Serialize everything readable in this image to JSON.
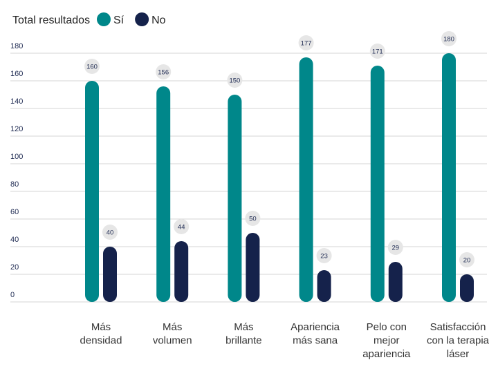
{
  "chart_data": {
    "type": "bar",
    "legend_title": "Total resultados",
    "legend_position": "top-left",
    "categories": [
      [
        "Más",
        "densidad"
      ],
      [
        "Más",
        "volumen"
      ],
      [
        "Más",
        "brillante"
      ],
      [
        "Apariencia",
        "más sana"
      ],
      [
        "Pelo con",
        "mejor",
        "apariencia"
      ],
      [
        "Satisfacción",
        "con la terapia",
        "láser"
      ]
    ],
    "series": [
      {
        "name": "Sí",
        "color": "#00878a",
        "values": [
          160,
          156,
          150,
          177,
          171,
          180
        ]
      },
      {
        "name": "No",
        "color": "#15224b",
        "values": [
          40,
          44,
          50,
          23,
          29,
          20
        ]
      }
    ],
    "ylim": [
      0,
      180
    ],
    "yticks": [
      0,
      20,
      40,
      60,
      80,
      100,
      120,
      140,
      160,
      180
    ],
    "grid": true,
    "data_labels": true
  }
}
